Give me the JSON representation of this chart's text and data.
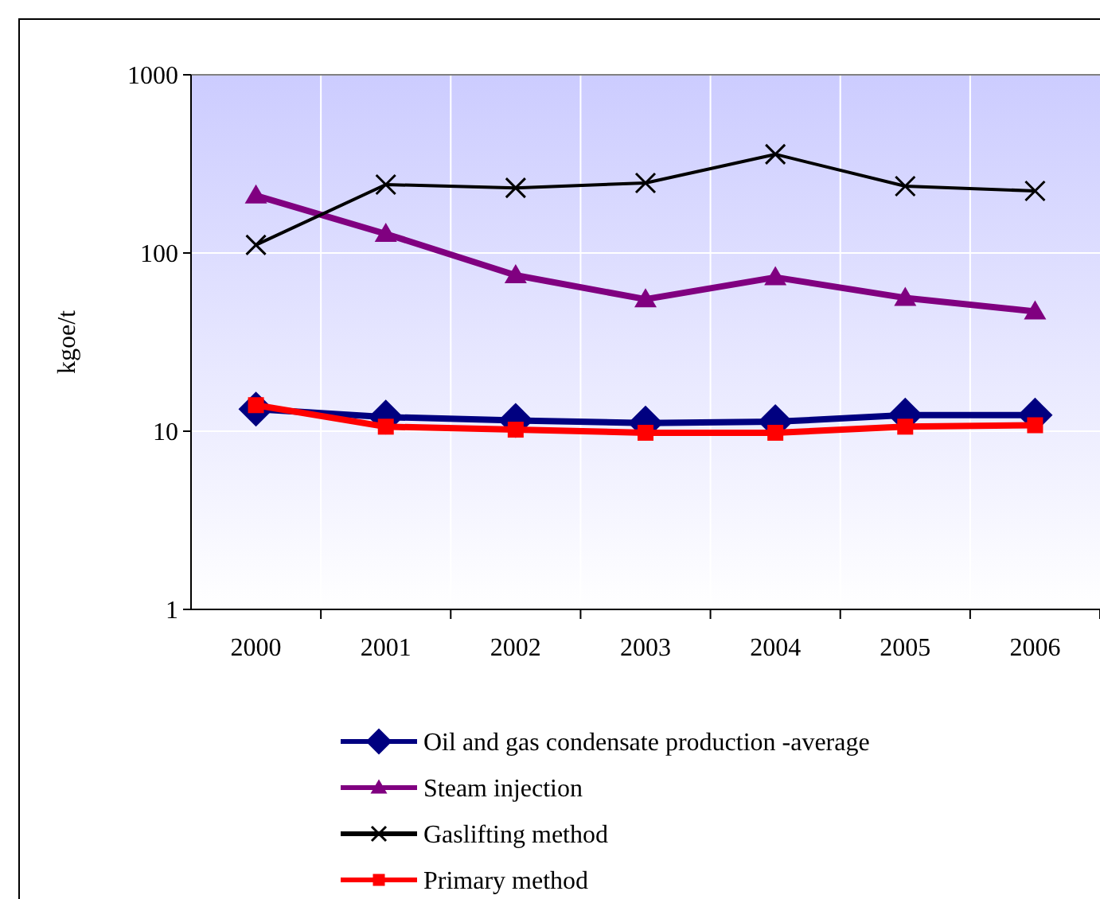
{
  "chart_data": {
    "type": "line",
    "ylabel": "kgoe/t",
    "categories": [
      "2000",
      "2001",
      "2002",
      "2003",
      "2004",
      "2005",
      "2006"
    ],
    "log": true,
    "ylim": [
      1,
      1000
    ],
    "yticks": [
      1,
      10,
      100,
      1000
    ],
    "grid": true,
    "legend": "bottom",
    "series": [
      {
        "name": "Oil and gas condensate production -average",
        "color": "#000080",
        "marker": "diamond",
        "values": [
          13.3,
          12.0,
          11.5,
          11.1,
          11.3,
          12.3,
          12.3
        ]
      },
      {
        "name": "Steam injection",
        "color": "#800080",
        "marker": "triangle",
        "values": [
          210,
          128,
          75,
          55,
          73,
          56,
          47
        ]
      },
      {
        "name": "Gaslifting method",
        "color": "#000000",
        "marker": "cross",
        "values": [
          111,
          242,
          232,
          247,
          358,
          237,
          223
        ]
      },
      {
        "name": "Primary method",
        "color": "#ff0000",
        "marker": "square",
        "values": [
          14,
          10.6,
          10.2,
          9.8,
          9.8,
          10.6,
          10.8
        ]
      }
    ]
  }
}
